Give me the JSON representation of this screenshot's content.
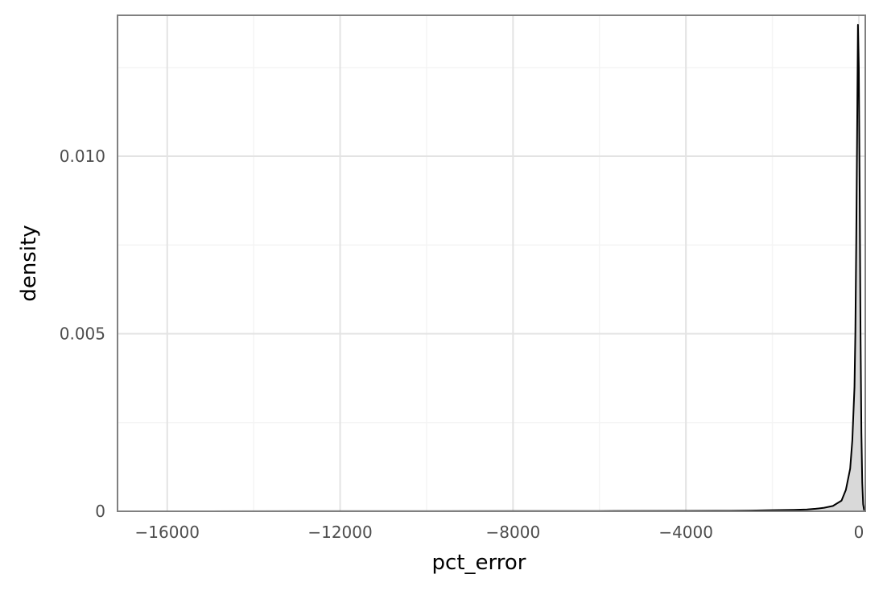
{
  "chart_data": {
    "type": "area",
    "title": "",
    "xlabel": "pct_error",
    "ylabel": "density",
    "xlim": [
      -17150,
      150
    ],
    "ylim": [
      0,
      0.01397
    ],
    "x_ticks": [
      -16000,
      -12000,
      -8000,
      -4000,
      0
    ],
    "x_tick_labels": [
      "−16000",
      "−12000",
      "−8000",
      "−4000",
      "0"
    ],
    "y_ticks": [
      0,
      0.005,
      0.01
    ],
    "y_tick_labels": [
      "0",
      "0.005",
      "0.010"
    ],
    "grid": true,
    "legend": "none",
    "series": [
      {
        "x": [
          -17150,
          -12800,
          -10000,
          -8000,
          -6000,
          -4000,
          -3000,
          -2500,
          -2000,
          -1500,
          -1200,
          -1000,
          -800,
          -600,
          -400,
          -300,
          -200,
          -150,
          -100,
          -80,
          -60,
          -40,
          -20,
          0,
          20,
          40,
          60,
          80,
          100,
          120,
          150
        ],
        "y": [
          0,
          3e-06,
          4e-06,
          5e-06,
          7e-06,
          1e-05,
          1.5e-05,
          2e-05,
          3e-05,
          4e-05,
          5e-05,
          7e-05,
          0.0001,
          0.00015,
          0.0003,
          0.0006,
          0.0012,
          0.002,
          0.0035,
          0.005,
          0.0075,
          0.0105,
          0.0137,
          0.0125,
          0.009,
          0.005,
          0.0022,
          0.0008,
          0.0002,
          5e-05,
          0
        ]
      }
    ],
    "colors": {
      "line": "#000000",
      "fill": "#d9d9d9",
      "grid_major": "#e3e3e3",
      "grid_minor": "#f4f4f4",
      "panel_border": "#808080",
      "tick_text": "#4d4d4d"
    }
  }
}
